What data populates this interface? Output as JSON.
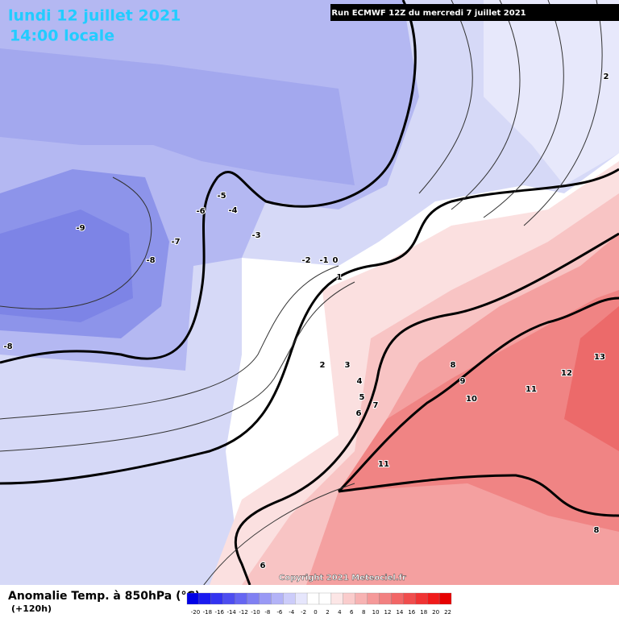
{
  "header": {
    "title": "lundi 12 juillet 2021",
    "subtitle": "14:00 locale",
    "run": "Run ECMWF 12Z du mercredi 7 juillet 2021"
  },
  "contour_labels": [
    2,
    -9,
    -8,
    -7,
    -6,
    -5,
    -4,
    -3,
    -2,
    -1,
    0,
    1,
    -8,
    2,
    3,
    4,
    5,
    6,
    7,
    8,
    9,
    10,
    11,
    12,
    13,
    11,
    8,
    6
  ],
  "copyright": "Copyright 2021 Meteociel.fr",
  "legend": {
    "title": "Anomalie Temp. à 850hPa (°C)",
    "lead": "(+120h)",
    "ticks": [
      -20,
      -18,
      -16,
      -14,
      -12,
      -10,
      -8,
      -6,
      -4,
      -2,
      0,
      2,
      4,
      6,
      8,
      10,
      12,
      14,
      16,
      18,
      20,
      22
    ],
    "colors": [
      "#0000e6",
      "#1a1af0",
      "#3333f0",
      "#4d4df0",
      "#6666f2",
      "#8080f2",
      "#9999f5",
      "#b3b3f7",
      "#ccccfa",
      "#e6e6fc",
      "#ffffff",
      "#ffffff",
      "#fce6e6",
      "#facccc",
      "#f7b3b3",
      "#f59999",
      "#f28080",
      "#f26666",
      "#f04d4d",
      "#f03333",
      "#f01a1a",
      "#e60000"
    ]
  }
}
